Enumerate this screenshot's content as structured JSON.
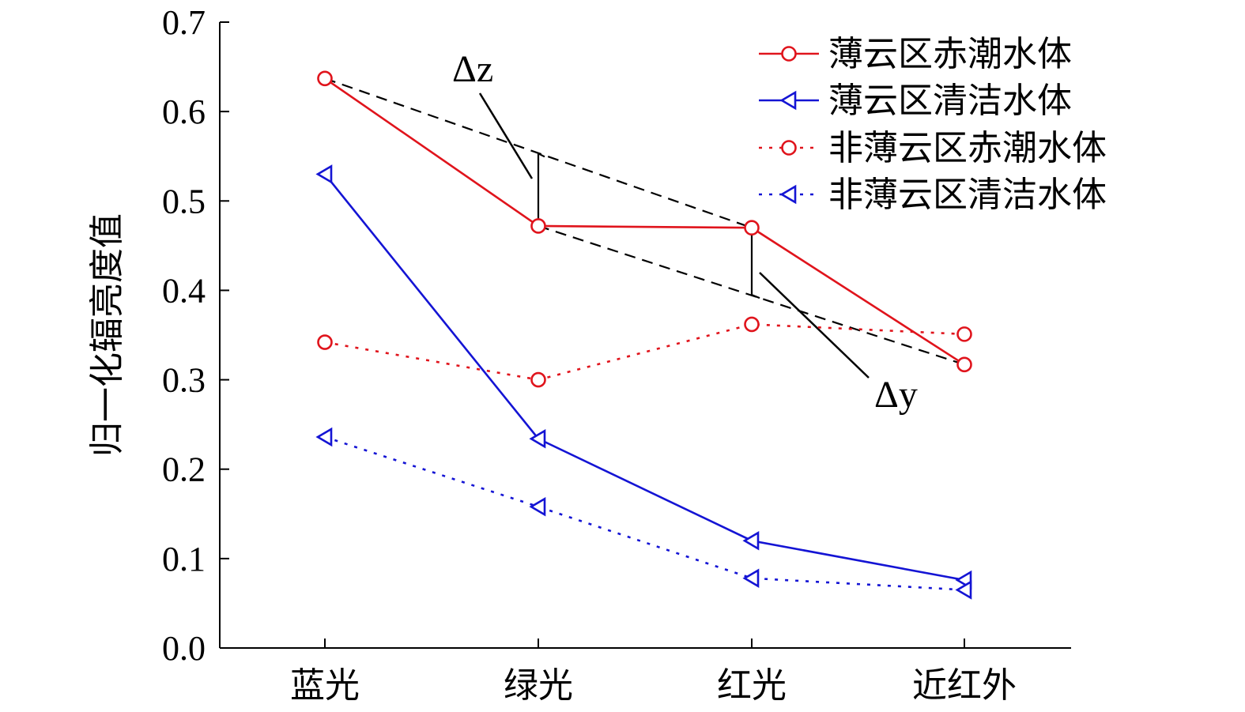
{
  "chart_data": {
    "type": "line",
    "categories": [
      "蓝光",
      "绿光",
      "红光",
      "近红外"
    ],
    "ylabel": "归一化辐亮度值",
    "ylim": [
      0,
      0.7
    ],
    "yticks": [
      "0.0",
      "0.1",
      "0.2",
      "0.3",
      "0.4",
      "0.5",
      "0.6",
      "0.7"
    ],
    "grid": false,
    "legend_position": "top-right",
    "series": [
      {
        "name": "薄云区赤潮水体",
        "values": [
          0.637,
          0.472,
          0.47,
          0.317
        ],
        "color": "#e0141c",
        "line": "solid",
        "marker": "circle"
      },
      {
        "name": "薄云区清洁水体",
        "values": [
          0.53,
          0.234,
          0.12,
          0.076
        ],
        "color": "#1414d4",
        "line": "solid",
        "marker": "triangle-left"
      },
      {
        "name": "非薄云区赤潮水体",
        "values": [
          0.342,
          0.3,
          0.362,
          0.351
        ],
        "color": "#e0141c",
        "line": "dotted",
        "marker": "circle"
      },
      {
        "name": "非薄云区清洁水体",
        "values": [
          0.236,
          0.158,
          0.078,
          0.065
        ],
        "color": "#1414d4",
        "line": "dotted",
        "marker": "triangle-left"
      }
    ],
    "annotations": [
      {
        "label": "Δz",
        "category": "绿光",
        "from": 0.472,
        "to": 0.553
      },
      {
        "label": "Δy",
        "category": "红光",
        "from": 0.47,
        "to": 0.395
      }
    ]
  }
}
